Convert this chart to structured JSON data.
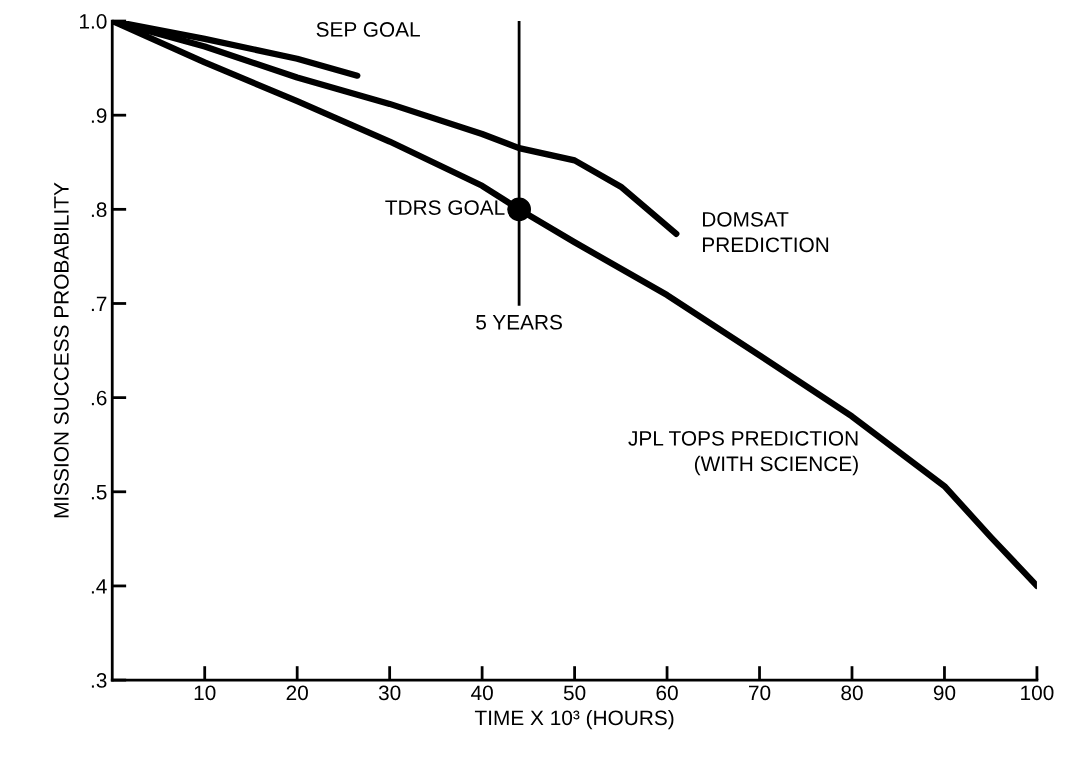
{
  "chart_data": {
    "type": "line",
    "xlabel": "TIME X 10³ (HOURS)",
    "ylabel": "MISSION SUCCESS PROBABILITY",
    "xlim": [
      0,
      100
    ],
    "xticks": [
      10,
      20,
      30,
      40,
      50,
      60,
      70,
      80,
      90,
      100
    ],
    "ylim": [
      0.3,
      1.0
    ],
    "yticks": [
      {
        "value": 0.3,
        "label": ".3"
      },
      {
        "value": 0.4,
        "label": ".4"
      },
      {
        "value": 0.5,
        "label": ".5"
      },
      {
        "value": 0.6,
        "label": ".6"
      },
      {
        "value": 0.7,
        "label": ".7"
      },
      {
        "value": 0.8,
        "label": ".8"
      },
      {
        "value": 0.9,
        "label": ".9"
      },
      {
        "value": 1.0,
        "label": "1.0"
      }
    ],
    "grid": false,
    "legend": false,
    "marker": "none",
    "line_style": "solid",
    "series": [
      {
        "name": "SEP GOAL",
        "color": "#000000",
        "x": [
          0,
          10,
          20,
          26.5
        ],
        "values": [
          1.0,
          0.981,
          0.96,
          0.942
        ]
      },
      {
        "name": "DOMSAT\nPREDICTION",
        "color": "#000000",
        "x": [
          0,
          10,
          20,
          30,
          40,
          44,
          50,
          55,
          61
        ],
        "values": [
          1.0,
          0.973,
          0.94,
          0.912,
          0.88,
          0.865,
          0.852,
          0.824,
          0.774
        ]
      },
      {
        "name": "JPL TOPS PREDICTION\n(WITH SCIENCE)",
        "color": "#000000",
        "x": [
          0,
          10,
          20,
          30,
          40,
          44,
          50,
          60,
          70,
          80,
          90,
          95,
          100
        ],
        "values": [
          1.0,
          0.956,
          0.915,
          0.872,
          0.825,
          0.8,
          0.765,
          0.709,
          0.645,
          0.58,
          0.506,
          0.452,
          0.4
        ]
      },
      {
        "name": "TDRS GOAL",
        "type": "scatter",
        "marker": "circle",
        "color": "#000000",
        "x": [
          44
        ],
        "values": [
          0.8
        ]
      }
    ],
    "ref_lines": [
      {
        "axis": "x",
        "value": 44,
        "label": "5 YEARS",
        "color": "#000000"
      }
    ]
  }
}
